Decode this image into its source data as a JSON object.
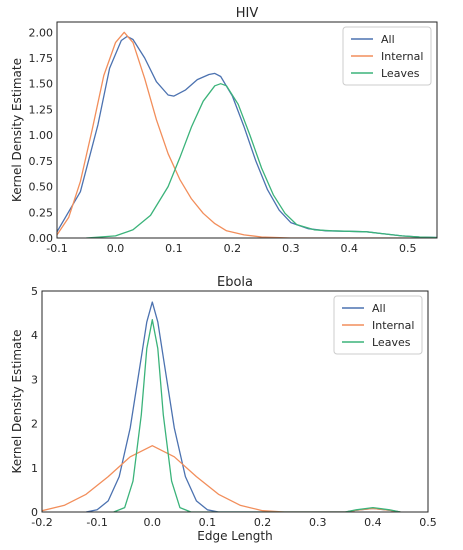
{
  "colors": {
    "All": "#4c72b0",
    "Internal": "#f28e5b",
    "Leaves": "#3bb37a",
    "axis": "#262626"
  },
  "chart_data": [
    {
      "type": "line",
      "title": "HIV",
      "xlabel": "",
      "ylabel": "Kernel Density Estimate",
      "xlim": [
        -0.1,
        0.55
      ],
      "ylim": [
        0,
        2.1
      ],
      "xticks": [
        "-0.1",
        "0.0",
        "0.1",
        "0.2",
        "0.3",
        "0.4",
        "0.5"
      ],
      "yticks": [
        "0.00",
        "0.25",
        "0.50",
        "0.75",
        "1.00",
        "1.25",
        "1.50",
        "1.75",
        "2.00"
      ],
      "legend": {
        "position": "upper-right",
        "entries": [
          "All",
          "Internal",
          "Leaves"
        ]
      },
      "series": [
        {
          "name": "All",
          "points": [
            [
              -0.1,
              0.06
            ],
            [
              -0.06,
              0.45
            ],
            [
              -0.03,
              1.1
            ],
            [
              -0.01,
              1.65
            ],
            [
              0.01,
              1.92
            ],
            [
              0.02,
              1.96
            ],
            [
              0.03,
              1.93
            ],
            [
              0.05,
              1.75
            ],
            [
              0.07,
              1.52
            ],
            [
              0.09,
              1.39
            ],
            [
              0.1,
              1.38
            ],
            [
              0.12,
              1.44
            ],
            [
              0.14,
              1.54
            ],
            [
              0.16,
              1.59
            ],
            [
              0.17,
              1.6
            ],
            [
              0.18,
              1.57
            ],
            [
              0.2,
              1.38
            ],
            [
              0.22,
              1.08
            ],
            [
              0.24,
              0.75
            ],
            [
              0.26,
              0.47
            ],
            [
              0.28,
              0.27
            ],
            [
              0.3,
              0.15
            ],
            [
              0.33,
              0.09
            ],
            [
              0.36,
              0.07
            ],
            [
              0.4,
              0.065
            ],
            [
              0.43,
              0.06
            ],
            [
              0.46,
              0.04
            ],
            [
              0.49,
              0.02
            ],
            [
              0.52,
              0.01
            ],
            [
              0.55,
              0.005
            ]
          ]
        },
        {
          "name": "Internal",
          "points": [
            [
              -0.1,
              0.03
            ],
            [
              -0.08,
              0.2
            ],
            [
              -0.06,
              0.55
            ],
            [
              -0.04,
              1.05
            ],
            [
              -0.02,
              1.58
            ],
            [
              0.0,
              1.9
            ],
            [
              0.015,
              2.0
            ],
            [
              0.03,
              1.9
            ],
            [
              0.05,
              1.55
            ],
            [
              0.07,
              1.15
            ],
            [
              0.09,
              0.82
            ],
            [
              0.11,
              0.57
            ],
            [
              0.13,
              0.38
            ],
            [
              0.15,
              0.24
            ],
            [
              0.17,
              0.14
            ],
            [
              0.19,
              0.07
            ],
            [
              0.22,
              0.03
            ],
            [
              0.25,
              0.01
            ],
            [
              0.3,
              0.0
            ],
            [
              0.55,
              0.0
            ]
          ]
        },
        {
          "name": "Leaves",
          "points": [
            [
              -0.05,
              0.0
            ],
            [
              0.0,
              0.02
            ],
            [
              0.03,
              0.08
            ],
            [
              0.06,
              0.22
            ],
            [
              0.09,
              0.5
            ],
            [
              0.11,
              0.78
            ],
            [
              0.13,
              1.08
            ],
            [
              0.15,
              1.33
            ],
            [
              0.17,
              1.48
            ],
            [
              0.18,
              1.5
            ],
            [
              0.19,
              1.48
            ],
            [
              0.21,
              1.3
            ],
            [
              0.23,
              1.0
            ],
            [
              0.25,
              0.68
            ],
            [
              0.27,
              0.42
            ],
            [
              0.29,
              0.24
            ],
            [
              0.31,
              0.13
            ],
            [
              0.34,
              0.08
            ],
            [
              0.37,
              0.07
            ],
            [
              0.4,
              0.065
            ],
            [
              0.43,
              0.06
            ],
            [
              0.46,
              0.04
            ],
            [
              0.49,
              0.02
            ],
            [
              0.52,
              0.01
            ],
            [
              0.55,
              0.005
            ]
          ]
        }
      ]
    },
    {
      "type": "line",
      "title": "Ebola",
      "xlabel": "Edge Length",
      "ylabel": "Kernel Density Estimate",
      "xlim": [
        -0.2,
        0.5
      ],
      "ylim": [
        0,
        5
      ],
      "xticks": [
        "-0.2",
        "-0.1",
        "0.0",
        "0.1",
        "0.2",
        "0.3",
        "0.4",
        "0.5"
      ],
      "yticks": [
        "0",
        "1",
        "2",
        "3",
        "4",
        "5"
      ],
      "legend": {
        "position": "upper-right",
        "entries": [
          "All",
          "Internal",
          "Leaves"
        ]
      },
      "series": [
        {
          "name": "All",
          "points": [
            [
              -0.12,
              0.0
            ],
            [
              -0.1,
              0.05
            ],
            [
              -0.08,
              0.25
            ],
            [
              -0.06,
              0.8
            ],
            [
              -0.04,
              1.9
            ],
            [
              -0.02,
              3.5
            ],
            [
              -0.01,
              4.3
            ],
            [
              0.0,
              4.75
            ],
            [
              0.01,
              4.3
            ],
            [
              0.02,
              3.5
            ],
            [
              0.04,
              1.9
            ],
            [
              0.06,
              0.8
            ],
            [
              0.08,
              0.25
            ],
            [
              0.1,
              0.05
            ],
            [
              0.12,
              0.0
            ],
            [
              0.35,
              0.0
            ],
            [
              0.37,
              0.04
            ],
            [
              0.4,
              0.08
            ],
            [
              0.43,
              0.04
            ],
            [
              0.45,
              0.0
            ]
          ]
        },
        {
          "name": "Internal",
          "points": [
            [
              -0.2,
              0.03
            ],
            [
              -0.16,
              0.15
            ],
            [
              -0.12,
              0.4
            ],
            [
              -0.08,
              0.8
            ],
            [
              -0.04,
              1.25
            ],
            [
              0.0,
              1.5
            ],
            [
              0.04,
              1.25
            ],
            [
              0.08,
              0.8
            ],
            [
              0.12,
              0.4
            ],
            [
              0.16,
              0.15
            ],
            [
              0.2,
              0.03
            ],
            [
              0.24,
              0.0
            ],
            [
              0.35,
              0.0
            ],
            [
              0.37,
              0.04
            ],
            [
              0.4,
              0.08
            ],
            [
              0.43,
              0.04
            ],
            [
              0.45,
              0.0
            ]
          ]
        },
        {
          "name": "Leaves",
          "points": [
            [
              -0.07,
              0.0
            ],
            [
              -0.05,
              0.1
            ],
            [
              -0.035,
              0.7
            ],
            [
              -0.02,
              2.2
            ],
            [
              -0.01,
              3.7
            ],
            [
              0.0,
              4.35
            ],
            [
              0.01,
              3.7
            ],
            [
              0.02,
              2.2
            ],
            [
              0.035,
              0.7
            ],
            [
              0.05,
              0.1
            ],
            [
              0.07,
              0.0
            ],
            [
              0.35,
              0.0
            ],
            [
              0.37,
              0.05
            ],
            [
              0.4,
              0.1
            ],
            [
              0.43,
              0.05
            ],
            [
              0.45,
              0.0
            ]
          ]
        }
      ]
    }
  ]
}
